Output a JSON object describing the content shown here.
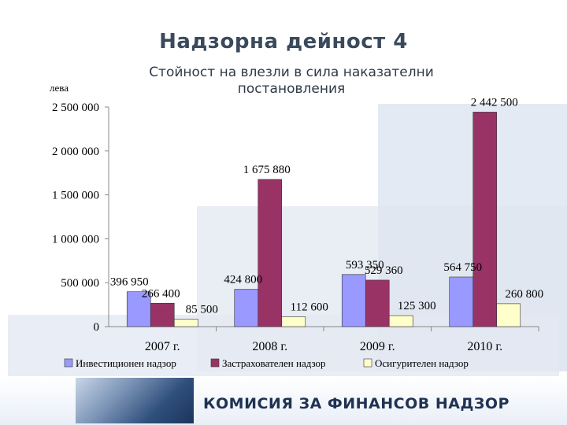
{
  "page": {
    "title": "Надзорна дейност 4",
    "footer_org": "КОМИСИЯ ЗА ФИНАНСОВ НАДЗОР",
    "colors": {
      "background_blocks": "#e6ecf5",
      "footer_text": "#1f3353"
    }
  },
  "chart_data": {
    "type": "bar",
    "title": "Стойност на влезли в сила наказателни постановления",
    "ylabel": "лева",
    "xlabel": "",
    "ylim": [
      0,
      2500000
    ],
    "yticks": [
      {
        "value": 0,
        "label": "0"
      },
      {
        "value": 500000,
        "label": "500 000"
      },
      {
        "value": 1000000,
        "label": "1 000 000"
      },
      {
        "value": 1500000,
        "label": "1 500 000"
      },
      {
        "value": 2000000,
        "label": "2 000 000"
      },
      {
        "value": 2500000,
        "label": "2 500 000"
      }
    ],
    "grid": false,
    "legend_position": "bottom",
    "categories": [
      "2007 г.",
      "2008 г.",
      "2009 г.",
      "2010 г."
    ],
    "series": [
      {
        "name": "Инвестиционен надзор",
        "color": "#9999ff",
        "values": [
          396950,
          424800,
          593350,
          564750
        ],
        "labels": [
          "396 950",
          "424 800",
          "593 350",
          "564 750"
        ]
      },
      {
        "name": "Застрахователен надзор",
        "color": "#993366",
        "values": [
          266400,
          1675880,
          529360,
          2442500
        ],
        "labels": [
          "266 400",
          "1 675 880",
          "529 360",
          "2 442 500"
        ]
      },
      {
        "name": "Осигурителен надзор",
        "color": "#ffffcc",
        "values": [
          85500,
          112600,
          125300,
          260800
        ],
        "labels": [
          "85 500",
          "112 600",
          "125 300",
          "260 800"
        ]
      }
    ]
  }
}
